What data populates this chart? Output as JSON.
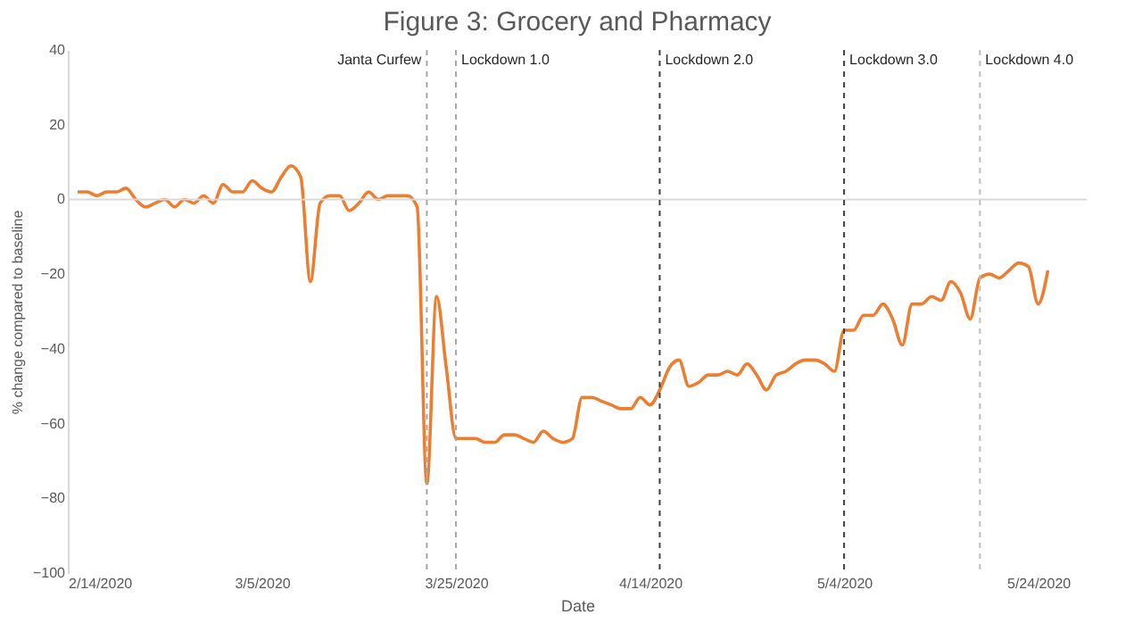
{
  "chart_data": {
    "type": "line",
    "title": "Figure 3: Grocery and Pharmacy",
    "xlabel": "Date",
    "ylabel": "% change compared to baseline",
    "x": [
      "2020-02-15",
      "2020-02-16",
      "2020-02-17",
      "2020-02-18",
      "2020-02-19",
      "2020-02-20",
      "2020-02-21",
      "2020-02-22",
      "2020-02-23",
      "2020-02-24",
      "2020-02-25",
      "2020-02-26",
      "2020-02-27",
      "2020-02-28",
      "2020-02-29",
      "2020-03-01",
      "2020-03-02",
      "2020-03-03",
      "2020-03-04",
      "2020-03-05",
      "2020-03-06",
      "2020-03-07",
      "2020-03-08",
      "2020-03-09",
      "2020-03-10",
      "2020-03-11",
      "2020-03-12",
      "2020-03-13",
      "2020-03-14",
      "2020-03-15",
      "2020-03-16",
      "2020-03-17",
      "2020-03-18",
      "2020-03-19",
      "2020-03-20",
      "2020-03-21",
      "2020-03-22",
      "2020-03-23",
      "2020-03-24",
      "2020-03-25",
      "2020-03-26",
      "2020-03-27",
      "2020-03-28",
      "2020-03-29",
      "2020-03-30",
      "2020-03-31",
      "2020-04-01",
      "2020-04-02",
      "2020-04-03",
      "2020-04-04",
      "2020-04-05",
      "2020-04-06",
      "2020-04-07",
      "2020-04-08",
      "2020-04-09",
      "2020-04-10",
      "2020-04-11",
      "2020-04-12",
      "2020-04-13",
      "2020-04-14",
      "2020-04-15",
      "2020-04-16",
      "2020-04-17",
      "2020-04-18",
      "2020-04-19",
      "2020-04-20",
      "2020-04-21",
      "2020-04-22",
      "2020-04-23",
      "2020-04-24",
      "2020-04-25",
      "2020-04-26",
      "2020-04-27",
      "2020-04-28",
      "2020-04-29",
      "2020-04-30",
      "2020-05-01",
      "2020-05-02",
      "2020-05-03",
      "2020-05-04",
      "2020-05-05",
      "2020-05-06",
      "2020-05-07",
      "2020-05-08",
      "2020-05-09",
      "2020-05-10",
      "2020-05-11",
      "2020-05-12",
      "2020-05-13",
      "2020-05-14",
      "2020-05-15",
      "2020-05-16",
      "2020-05-17",
      "2020-05-18",
      "2020-05-19",
      "2020-05-20",
      "2020-05-21",
      "2020-05-22",
      "2020-05-23",
      "2020-05-24",
      "2020-05-25"
    ],
    "series": [
      {
        "color": "#ed7d31",
        "values": [
          2,
          2,
          1,
          2,
          2,
          3,
          0,
          -2,
          -1,
          0,
          -2,
          0,
          -1,
          1,
          -1,
          4,
          2,
          2,
          5,
          3,
          2,
          6,
          9,
          6,
          -22,
          -1,
          1,
          1,
          -3,
          -1,
          2,
          0,
          1,
          1,
          1,
          -2,
          -76,
          -26,
          -45,
          -64,
          -64,
          -64,
          -65,
          -65,
          -63,
          -63,
          -64,
          -65,
          -62,
          -64,
          -65,
          -64,
          -53,
          -53,
          -54,
          -55,
          -56,
          -56,
          -53,
          -55,
          -51,
          -45,
          -43,
          -50,
          -49,
          -47,
          -47,
          -46,
          -47,
          -44,
          -47,
          -51,
          -47,
          -46,
          -44,
          -43,
          -43,
          -44,
          -46,
          -35,
          -35,
          -31,
          -31,
          -28,
          -32,
          -39,
          -28,
          -28,
          -26,
          -27,
          -22,
          -25,
          -32,
          -21,
          -20,
          -21,
          -19,
          -17,
          -18,
          -28,
          -19
        ]
      }
    ],
    "xlim": [
      "2020-02-14",
      "2020-05-29"
    ],
    "xticks": [
      {
        "value": "2020-02-14",
        "label": "2/14/2020"
      },
      {
        "value": "2020-03-05",
        "label": "3/5/2020"
      },
      {
        "value": "2020-03-25",
        "label": "3/25/2020"
      },
      {
        "value": "2020-04-14",
        "label": "4/14/2020"
      },
      {
        "value": "2020-05-04",
        "label": "5/4/2020"
      },
      {
        "value": "2020-05-24",
        "label": "5/24/2020"
      }
    ],
    "ylim": [
      -100,
      40
    ],
    "yticks": [
      -100,
      -80,
      -60,
      -40,
      -20,
      0,
      20,
      40
    ],
    "grid": false,
    "marker": "none",
    "line_style": "solid",
    "ref_lines": [
      {
        "axis": "y",
        "value": 0,
        "color": "#d9d9d9",
        "line_style": "solid"
      },
      {
        "axis": "x",
        "value": "2020-03-22",
        "label": "Janta Curfew",
        "color": "#a6a6a6",
        "line_style": "dashed"
      },
      {
        "axis": "x",
        "value": "2020-03-25",
        "label": "Lockdown 1.0",
        "color": "#a6a6a6",
        "line_style": "dashed"
      },
      {
        "axis": "x",
        "value": "2020-04-15",
        "label": "Lockdown 2.0",
        "color": "#404040",
        "line_style": "dashed"
      },
      {
        "axis": "x",
        "value": "2020-05-04",
        "label": "Lockdown 3.0",
        "color": "#404040",
        "line_style": "dashed"
      },
      {
        "axis": "x",
        "value": "2020-05-18",
        "label": "Lockdown 4.0",
        "color": "#bfbfbf",
        "line_style": "dashed"
      }
    ]
  }
}
